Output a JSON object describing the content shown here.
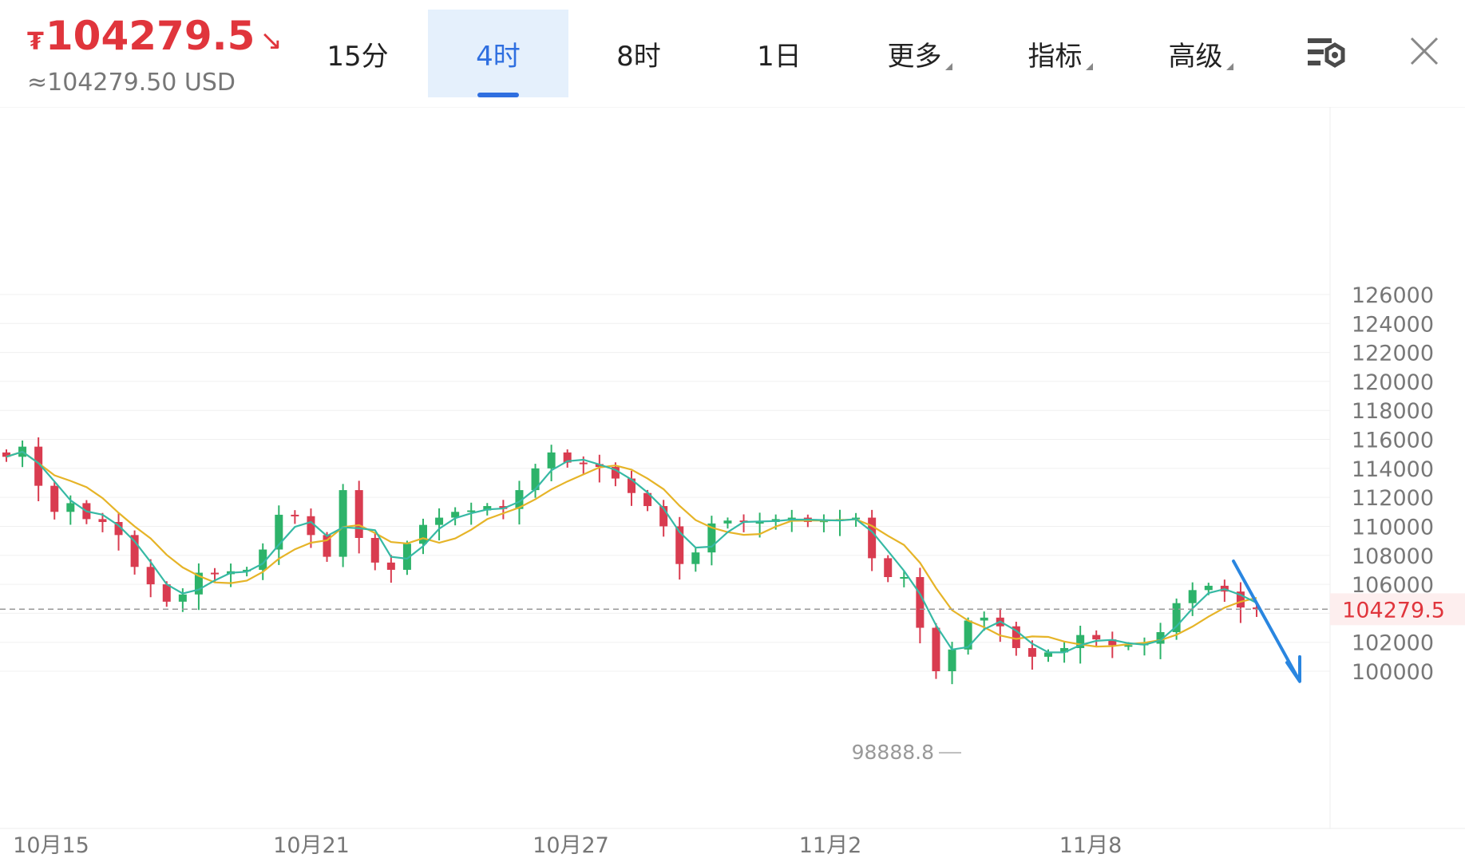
{
  "header": {
    "currency_symbol": "₮",
    "price": "104279.5",
    "direction_symbol": "↘",
    "usd_price": "≈104279.50 USD",
    "tabs": [
      {
        "label": "15分",
        "active": false
      },
      {
        "label": "4时",
        "active": true
      },
      {
        "label": "8时",
        "active": false
      },
      {
        "label": "1日",
        "active": false
      },
      {
        "label": "更多",
        "active": false,
        "dropdown": true
      },
      {
        "label": "指标",
        "active": false,
        "dropdown": true
      },
      {
        "label": "高级",
        "active": false,
        "dropdown": true
      }
    ],
    "icons": [
      "chart-settings-icon",
      "close-icon"
    ]
  },
  "colors": {
    "up": "#2db36a",
    "down": "#d93c50",
    "ma_fast": "#36b9a4",
    "ma_slow": "#e6b428",
    "price_red": "#e0353c",
    "accent": "#2f6fe0",
    "annotation_arrow": "#2a86e0"
  },
  "chart_data": {
    "type": "candlestick",
    "interval": "4时",
    "y_ticks": [
      100000,
      102000,
      104000,
      106000,
      108000,
      110000,
      112000,
      114000,
      116000,
      118000,
      120000,
      122000,
      124000,
      126000
    ],
    "y_tick_labels": [
      "100000",
      "102000",
      "106000",
      "108000",
      "110000",
      "112000",
      "114000",
      "116000",
      "118000",
      "120000",
      "122000",
      "124000",
      "126000"
    ],
    "x_labels": [
      "10月15",
      "10月21",
      "10月27",
      "11月2",
      "11月8"
    ],
    "current_price": 104279.5,
    "current_price_label": "104279.5",
    "low_marker": 98888.8,
    "low_marker_label": "98888.8",
    "close_path": [
      114800,
      115500,
      112800,
      111000,
      111600,
      110500,
      110300,
      109400,
      107200,
      106000,
      104800,
      105300,
      106800,
      106700,
      106900,
      107000,
      108400,
      110800,
      110700,
      109400,
      107900,
      112500,
      109200,
      107500,
      107000,
      108800,
      110100,
      110600,
      111000,
      111100,
      111400,
      111200,
      112500,
      114000,
      115100,
      114400,
      114300,
      114100,
      113300,
      112300,
      111400,
      110000,
      107400,
      108200,
      110200,
      110400,
      110300,
      110300,
      110500,
      110600,
      110300,
      110400,
      110500,
      110600,
      107800,
      106500,
      106500,
      103000,
      100000,
      101500,
      103500,
      103700,
      103100,
      101600,
      101000,
      101300,
      101600,
      102500,
      102200,
      101800,
      101800,
      101900,
      102700,
      104700,
      105600,
      105900,
      105500,
      104400,
      104279.5
    ],
    "moving_averages": [
      "fast",
      "slow"
    ],
    "annotation": "down-trend-arrow"
  }
}
